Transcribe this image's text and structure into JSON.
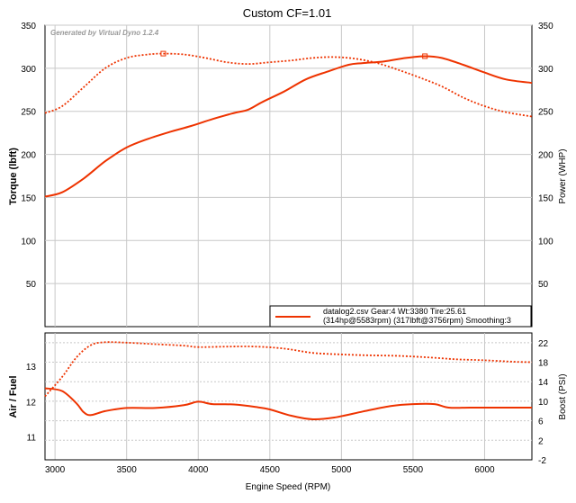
{
  "chart_data": [
    {
      "type": "line",
      "title": "Custom CF=1.01",
      "watermark": "Generated by Virtual Dyno 1.2.4",
      "ylabel_left": "Torque (lbft)",
      "ylabel_right": "Power (WHP)",
      "xlim": [
        2930,
        6330
      ],
      "ylim_left": [
        0,
        350
      ],
      "ylim_right": [
        0,
        350
      ],
      "yticks_left": [
        50,
        100,
        150,
        200,
        250,
        300,
        350
      ],
      "yticks_right": [
        50,
        100,
        150,
        200,
        250,
        300,
        350
      ],
      "grid": true,
      "legend_placement": "bottom-right",
      "legend": {
        "line1": "datalog2.csv Gear:4 Wt:3380 Tire:25.61",
        "line2": "(314hp@5583rpm) (317lbft@3756rpm) Smoothing:3"
      },
      "series": [
        {
          "style": "solid",
          "color": "#ee3300",
          "x": [
            2930,
            3050,
            3200,
            3350,
            3500,
            3650,
            3800,
            3950,
            4100,
            4250,
            4350,
            4450,
            4600,
            4750,
            4900,
            5050,
            5150,
            5300,
            5450,
            5583,
            5700,
            5850,
            6000,
            6150,
            6330
          ],
          "y": [
            151,
            156,
            172,
            192,
            208,
            218,
            226,
            233,
            241,
            248,
            252,
            261,
            273,
            287,
            296,
            304,
            306,
            308,
            312,
            314,
            312,
            304,
            295,
            287,
            283
          ],
          "peak": {
            "x": 5583,
            "y": 314
          }
        },
        {
          "style": "dotted",
          "color": "#ee3300",
          "x": [
            2930,
            3050,
            3200,
            3350,
            3500,
            3650,
            3756,
            3900,
            4050,
            4200,
            4350,
            4500,
            4650,
            4800,
            4950,
            5100,
            5250,
            5400,
            5550,
            5700,
            5850,
            6000,
            6150,
            6330
          ],
          "y": [
            248,
            256,
            278,
            300,
            312,
            316,
            317,
            316,
            312,
            307,
            305,
            307,
            309,
            312,
            313,
            311,
            306,
            298,
            289,
            279,
            266,
            256,
            249,
            244
          ],
          "peak": {
            "x": 3756,
            "y": 317
          }
        }
      ]
    },
    {
      "type": "line",
      "xlabel": "Engine Speed (RPM)",
      "ylabel_left": "Air / Fuel",
      "ylabel_right": "Boost (PSI)",
      "xlim": [
        2930,
        6330
      ],
      "xticks": [
        3000,
        3500,
        4000,
        4500,
        5000,
        5500,
        6000
      ],
      "ylim_left": [
        10.35,
        13.95
      ],
      "ylim_right": [
        -2,
        24
      ],
      "yticks_left": [
        11,
        12,
        13
      ],
      "yticks_right": [
        -2,
        2,
        6,
        10,
        14,
        18,
        22
      ],
      "grid": true,
      "series": [
        {
          "axis": "left",
          "style": "solid",
          "color": "#ee3300",
          "x": [
            2930,
            3050,
            3150,
            3200,
            3250,
            3350,
            3500,
            3700,
            3900,
            4000,
            4100,
            4250,
            4400,
            4500,
            4650,
            4800,
            4950,
            5150,
            5350,
            5500,
            5650,
            5750,
            5900,
            6100,
            6330
          ],
          "y": [
            12.38,
            12.3,
            11.95,
            11.7,
            11.62,
            11.73,
            11.82,
            11.82,
            11.9,
            12.0,
            11.93,
            11.92,
            11.85,
            11.78,
            11.6,
            11.5,
            11.55,
            11.72,
            11.88,
            11.93,
            11.93,
            11.83,
            11.83,
            11.83,
            11.83
          ]
        },
        {
          "axis": "right",
          "style": "dotted",
          "color": "#ee3300",
          "x": [
            2930,
            3050,
            3150,
            3250,
            3350,
            3500,
            3700,
            3900,
            4000,
            4200,
            4400,
            4600,
            4800,
            5000,
            5200,
            5400,
            5600,
            5800,
            6000,
            6200,
            6330
          ],
          "y": [
            11,
            15,
            19,
            21.5,
            22.1,
            22.0,
            21.7,
            21.4,
            21.1,
            21.2,
            21.2,
            20.8,
            19.9,
            19.6,
            19.4,
            19.3,
            19.0,
            18.6,
            18.4,
            18.1,
            18.0
          ]
        }
      ]
    }
  ]
}
